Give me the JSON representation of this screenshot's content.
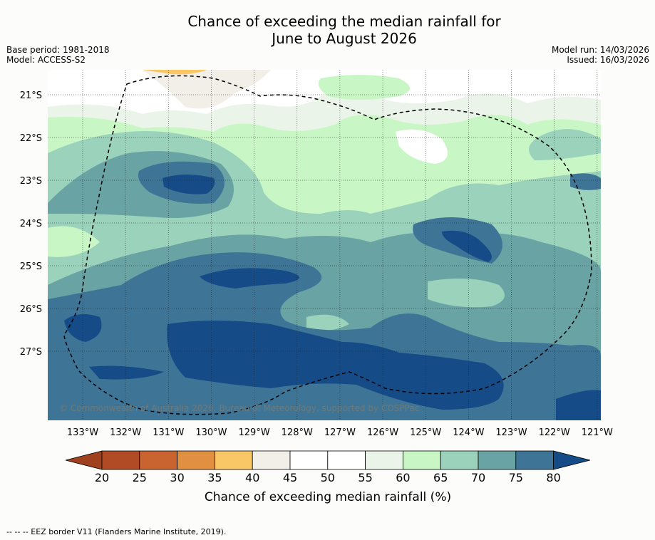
{
  "title_line1": "Chance of exceeding the median rainfall for",
  "title_line2": "June to August 2026",
  "meta_left": {
    "base_period": "Base period: 1981-2018",
    "model": "Model: ACCESS-S2"
  },
  "meta_right": {
    "model_run": "Model run: 14/03/2026",
    "issued": "Issued: 16/03/2026"
  },
  "map": {
    "lon_labels": [
      "133°W",
      "132°W",
      "131°W",
      "130°W",
      "129°W",
      "128°W",
      "127°W",
      "126°W",
      "125°W",
      "124°W",
      "123°W",
      "122°W",
      "121°W"
    ],
    "lat_labels": [
      "21°S",
      "22°S",
      "23°S",
      "24°S",
      "25°S",
      "26°S",
      "27°S"
    ],
    "copyright": "© Commonwealth of Australia 2026, Bureau of Meteorology, supported by COSPPac",
    "region_values": {
      "background": 65,
      "north_band": 50,
      "north_west_cap": 45,
      "north_cap_orange": 35,
      "central_band": 75,
      "south_band": 80
    }
  },
  "colorbar": {
    "ticks": [
      "20",
      "25",
      "30",
      "35",
      "40",
      "45",
      "50",
      "55",
      "60",
      "65",
      "70",
      "75",
      "80"
    ],
    "colors": [
      "#a0401f",
      "#b04b26",
      "#c9632f",
      "#e09040",
      "#f9c766",
      "#f2efe9",
      "#ffffff",
      "#ffffff",
      "#eaf4e8",
      "#c8f7c5",
      "#9bd2bb",
      "#6aa3a3",
      "#3e7597",
      "#154b86"
    ],
    "label": "Chance of exceeding median rainfall (%)"
  },
  "footnote": "--  --  -- EEZ border V11 (Flanders Marine Institute, 2019)."
}
